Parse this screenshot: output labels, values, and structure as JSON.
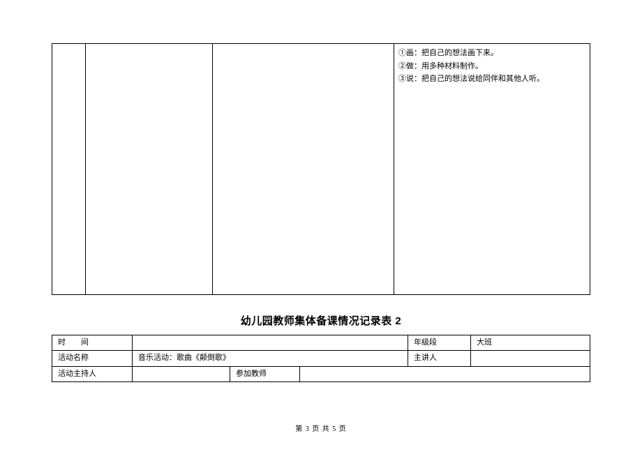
{
  "topTable": {
    "notes": {
      "line1": "①画：把自己的想法画下来。",
      "line2": "②做：用多种材料制作。",
      "line3": "③说：把自己的想法说给同伴和其他人听。"
    }
  },
  "title": "幼儿园教师集体备课情况记录表 2",
  "bottomTable": {
    "row1": {
      "label": "时　　间",
      "value": "",
      "gradeLabel": "年级段",
      "gradeValue": "大班"
    },
    "row2": {
      "label": "活动名称",
      "value": "音乐活动：歌曲《颠倒歌》",
      "speakerLabel": "主讲人",
      "speakerValue": ""
    },
    "row3": {
      "label": "活动主持人",
      "value": "",
      "teacherLabel": "参加教师",
      "teacherValue": ""
    }
  },
  "footer": "第 3 页 共 5 页"
}
